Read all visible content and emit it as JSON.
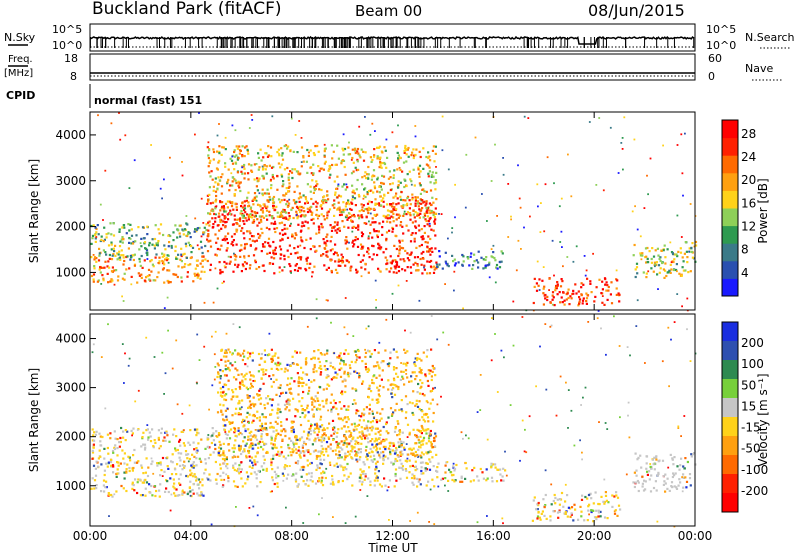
{
  "header": {
    "title": "Buckland Park (fitACF)",
    "beam": "Beam 00",
    "date": "08/Jun/2015"
  },
  "status_panels": {
    "nsky_label": "N.Sky",
    "nsky_ticks": [
      "10^5",
      "10^0"
    ],
    "nsearch_label": "N.Search",
    "nsearch_ticks": [
      "10^5",
      "10^0"
    ],
    "freq_label_line1": "Freq.",
    "freq_label_line2": "[MHz]",
    "freq_ticks": [
      "18",
      "8"
    ],
    "nave_label": "Nave",
    "nave_ticks": [
      "60",
      "0"
    ],
    "cpid_label": "CPID",
    "cpid_text": "normal (fast) 151"
  },
  "colors": {
    "power_scale": [
      "#1a1aff",
      "#2a50b0",
      "#3a7a88",
      "#2e9a50",
      "#8ed058",
      "#ffd21a",
      "#ffa010",
      "#ff6a00",
      "#ff2000",
      "#ff0000"
    ],
    "velocity_scale": [
      "#1a2ee0",
      "#2e50b0",
      "#2e8a50",
      "#77d03a",
      "#c6c6c6",
      "#ffd21a",
      "#ffa010",
      "#ff6a00",
      "#ff2000",
      "#ff0000"
    ],
    "line": "#000000"
  },
  "chart_data": [
    {
      "type": "heatmap",
      "name": "power",
      "xlabel": "",
      "ylabel": "Slant Range [km]",
      "x_range_hours": [
        0,
        24
      ],
      "ylim": [
        180,
        4500
      ],
      "y_ticks": [
        1000,
        2000,
        3000,
        4000
      ],
      "colorbar": {
        "label": "Power [dB]",
        "ticks": [
          "4",
          "8",
          "12",
          "16",
          "20",
          "24",
          "28"
        ],
        "range": [
          0,
          30
        ]
      },
      "echo_regions": [
        {
          "t_start": 0.0,
          "t_end": 4.6,
          "r_low": 800,
          "r_high": 1400,
          "level_db": 20
        },
        {
          "t_start": 0.0,
          "t_end": 4.6,
          "r_low": 1300,
          "r_high": 2100,
          "level_db": 12
        },
        {
          "t_start": 4.6,
          "t_end": 13.7,
          "r_low": 1000,
          "r_high": 2600,
          "level_db": 26
        },
        {
          "t_start": 4.6,
          "t_end": 13.7,
          "r_low": 2200,
          "r_high": 3800,
          "level_db": 18
        },
        {
          "t_start": 13.7,
          "t_end": 16.5,
          "r_low": 1100,
          "r_high": 1500,
          "level_db": 8
        },
        {
          "t_start": 17.5,
          "t_end": 21.0,
          "r_low": 300,
          "r_high": 900,
          "level_db": 26
        },
        {
          "t_start": 21.5,
          "t_end": 24.0,
          "r_low": 900,
          "r_high": 1700,
          "level_db": 14
        }
      ]
    },
    {
      "type": "heatmap",
      "name": "velocity",
      "xlabel": "Time UT",
      "ylabel": "Slant Range [km]",
      "x_range_hours": [
        0,
        24
      ],
      "x_ticks": [
        "00:00",
        "04:00",
        "08:00",
        "12:00",
        "16:00",
        "20:00",
        "00:00"
      ],
      "ylim": [
        180,
        4500
      ],
      "y_ticks": [
        1000,
        2000,
        3000,
        4000
      ],
      "colorbar": {
        "label": "Velocity [m s⁻¹]",
        "ticks": [
          "200",
          "100",
          "50",
          "15",
          "-15",
          "-50",
          "-100",
          "-200"
        ],
        "range": [
          -250,
          250
        ]
      },
      "echo_regions": [
        {
          "t_start": 0.0,
          "t_end": 4.6,
          "r_low": 800,
          "r_high": 2200,
          "level_ms": 0
        },
        {
          "t_start": 4.6,
          "t_end": 13.7,
          "r_low": 1000,
          "r_high": 2200,
          "level_ms": 0
        },
        {
          "t_start": 5.0,
          "t_end": 13.7,
          "r_low": 1600,
          "r_high": 3800,
          "level_ms": -50
        },
        {
          "t_start": 13.7,
          "t_end": 16.5,
          "r_low": 1100,
          "r_high": 1500,
          "level_ms": 0
        },
        {
          "t_start": 17.5,
          "t_end": 21.0,
          "r_low": 300,
          "r_high": 900,
          "level_ms": 0
        },
        {
          "t_start": 21.5,
          "t_end": 24.0,
          "r_low": 900,
          "r_high": 1700,
          "level_ms": 30
        }
      ]
    }
  ]
}
